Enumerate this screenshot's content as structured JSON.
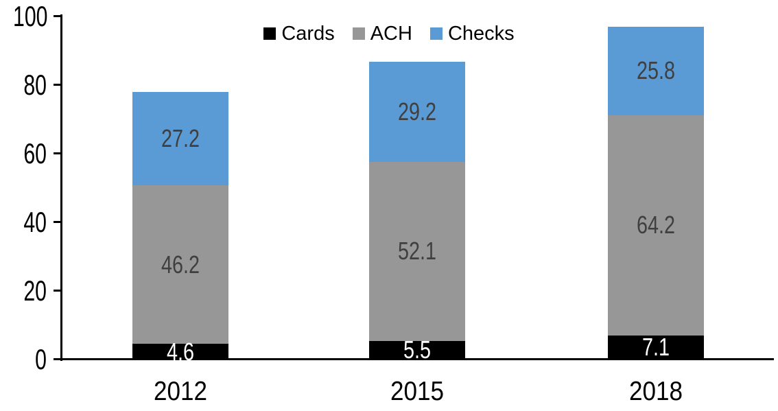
{
  "chart_data": {
    "type": "bar",
    "stacked": true,
    "title": "",
    "categories": [
      "2012",
      "2015",
      "2018"
    ],
    "series": [
      {
        "name": "Cards",
        "color": "#000000",
        "label_color": "#FFFFFF",
        "values": [
          4.6,
          5.5,
          7.1
        ]
      },
      {
        "name": "ACH",
        "color": "#979797",
        "label_color": "#3F3F3F",
        "values": [
          46.2,
          52.1,
          64.2
        ]
      },
      {
        "name": "Checks",
        "color": "#5B9BD5",
        "label_color": "#3F3F3F",
        "values": [
          27.2,
          29.2,
          25.8
        ]
      }
    ],
    "xlabel": "",
    "ylabel": "",
    "ylim": [
      0,
      100
    ],
    "yticks": [
      0,
      20,
      40,
      60,
      80,
      100
    ],
    "legend_position": "top-center",
    "grid": false,
    "axis_color": "#000000",
    "background": "#FFFFFF"
  }
}
